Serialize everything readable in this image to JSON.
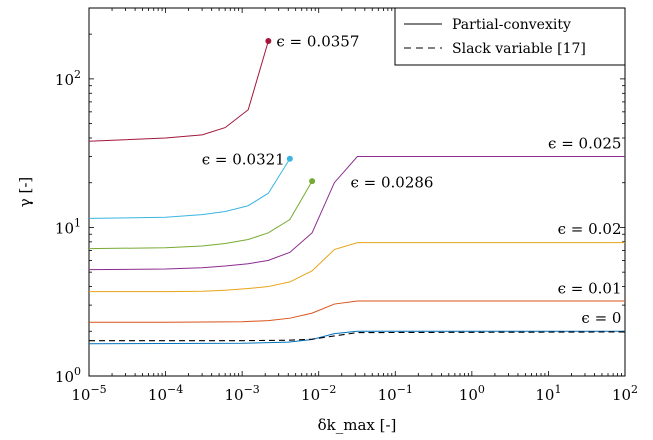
{
  "chart_data": {
    "type": "line",
    "title": "",
    "xlabel": "δk_max [-]",
    "ylabel": "γ [-]",
    "xscale": "log",
    "yscale": "log",
    "xlim": [
      1e-05,
      100
    ],
    "ylim": [
      1,
      300
    ],
    "grid": false,
    "legend_position": "top-right",
    "x_tick_labels": [
      {
        "value": 1e-05,
        "base": "10",
        "exp": "−5"
      },
      {
        "value": 0.0001,
        "base": "10",
        "exp": "−4"
      },
      {
        "value": 0.001,
        "base": "10",
        "exp": "−3"
      },
      {
        "value": 0.01,
        "base": "10",
        "exp": "−2"
      },
      {
        "value": 0.1,
        "base": "10",
        "exp": "−1"
      },
      {
        "value": 1,
        "base": "10",
        "exp": "0"
      },
      {
        "value": 10,
        "base": "10",
        "exp": "1"
      },
      {
        "value": 100,
        "base": "10",
        "exp": "2"
      }
    ],
    "y_tick_labels": [
      {
        "value": 1,
        "base": "10",
        "exp": "0"
      },
      {
        "value": 10,
        "base": "10",
        "exp": "1"
      },
      {
        "value": 100,
        "base": "10",
        "exp": "2"
      }
    ],
    "legend": [
      {
        "label": "Partial-convexity",
        "style": "solid"
      },
      {
        "label": "Slack variable [17]",
        "style": "dashed"
      }
    ],
    "series": [
      {
        "label": "ϵ = 0.0357",
        "color": "#a3173a",
        "style": "solid",
        "marker_end": true,
        "x": [
          1e-05,
          0.0001,
          0.0003,
          0.0006,
          0.0012,
          0.0022
        ],
        "y": [
          38,
          40,
          42,
          47,
          62,
          180
        ]
      },
      {
        "label": "ϵ = 0.0321",
        "color": "#3bb5e0",
        "style": "solid",
        "marker_end": true,
        "x": [
          1e-05,
          0.0001,
          0.0003,
          0.0006,
          0.0012,
          0.0022,
          0.0042
        ],
        "y": [
          11.5,
          11.7,
          12.2,
          12.8,
          14,
          17,
          29
        ]
      },
      {
        "label": "ϵ = 0.0286",
        "color": "#77aa33",
        "style": "solid",
        "marker_end": true,
        "x": [
          1e-05,
          0.0001,
          0.0003,
          0.0006,
          0.0012,
          0.0022,
          0.0042,
          0.0082
        ],
        "y": [
          7.2,
          7.3,
          7.5,
          7.8,
          8.3,
          9.2,
          11.3,
          20.5
        ]
      },
      {
        "label": "ϵ = 0.025",
        "color": "#8a2c8e",
        "style": "solid",
        "marker_end": false,
        "x": [
          1e-05,
          0.0001,
          0.0003,
          0.0006,
          0.0012,
          0.0022,
          0.0042,
          0.0082,
          0.016,
          0.032,
          100
        ],
        "y": [
          5.2,
          5.25,
          5.35,
          5.5,
          5.7,
          6.0,
          6.8,
          9.2,
          20,
          30,
          30
        ]
      },
      {
        "label": "ϵ = 0.02",
        "color": "#e8a317",
        "style": "solid",
        "marker_end": false,
        "x": [
          1e-05,
          0.0001,
          0.0003,
          0.0006,
          0.0012,
          0.0022,
          0.0042,
          0.0082,
          0.016,
          0.032,
          100
        ],
        "y": [
          3.7,
          3.7,
          3.72,
          3.78,
          3.88,
          4.0,
          4.3,
          5.1,
          7.1,
          7.9,
          7.9
        ]
      },
      {
        "label": "ϵ = 0.01",
        "color": "#d95319",
        "style": "solid",
        "marker_end": false,
        "x": [
          1e-05,
          0.0001,
          0.001,
          0.0022,
          0.0042,
          0.0082,
          0.016,
          0.032,
          100
        ],
        "y": [
          2.3,
          2.3,
          2.32,
          2.36,
          2.45,
          2.65,
          3.05,
          3.2,
          3.2
        ]
      },
      {
        "label": "ϵ = 0",
        "color": "#0072bd",
        "style": "solid",
        "marker_end": false,
        "x": [
          1e-05,
          0.001,
          0.004,
          0.0082,
          0.016,
          0.032,
          100
        ],
        "y": [
          1.65,
          1.66,
          1.69,
          1.76,
          1.93,
          2.0,
          2.0
        ]
      },
      {
        "label": "",
        "color": "#000000",
        "style": "dashed",
        "marker_end": false,
        "x": [
          1e-05,
          0.001,
          0.004,
          0.0082,
          0.016,
          0.032,
          100
        ],
        "y": [
          1.73,
          1.73,
          1.74,
          1.77,
          1.86,
          1.96,
          1.98
        ]
      }
    ],
    "annotations": [
      {
        "text": "ϵ = 0.0357",
        "x": 0.0028,
        "y": 165,
        "anchor": "start"
      },
      {
        "text": "ϵ = 0.0321",
        "x": 0.0036,
        "y": 26.5,
        "anchor": "end"
      },
      {
        "text": "ϵ = 0.0286",
        "x": 0.026,
        "y": 18.5,
        "anchor": "start"
      },
      {
        "text": "ϵ = 0.025",
        "x": 90,
        "y": 34,
        "anchor": "end"
      },
      {
        "text": "ϵ = 0.02",
        "x": 90,
        "y": 9.0,
        "anchor": "end"
      },
      {
        "text": "ϵ = 0.01",
        "x": 90,
        "y": 3.6,
        "anchor": "end"
      },
      {
        "text": "ϵ = 0",
        "x": 90,
        "y": 2.28,
        "anchor": "end"
      }
    ]
  }
}
